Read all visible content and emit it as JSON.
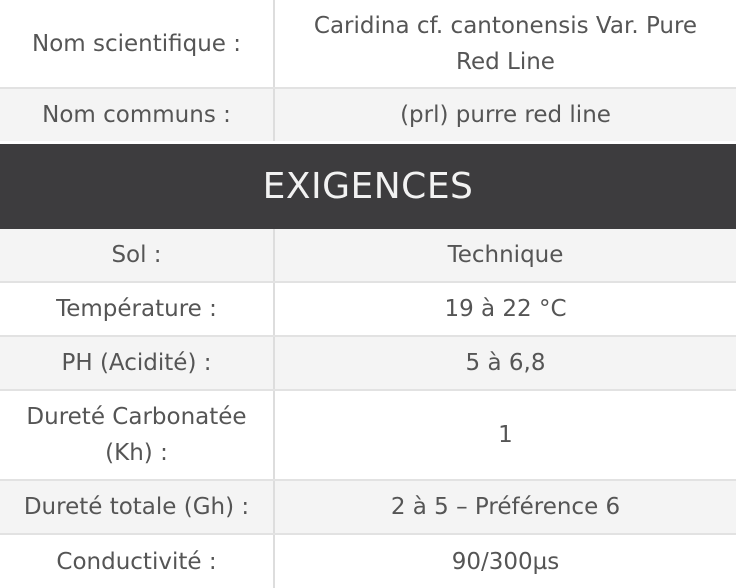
{
  "identity_rows": [
    {
      "label": "Nom scientifique :",
      "value": "Caridina cf. cantonensis Var. Pure Red Line"
    },
    {
      "label": "Nom communs :",
      "value": "(prl) purre red line"
    }
  ],
  "section_header": "EXIGENCES",
  "requirement_rows": [
    {
      "label": "Sol :",
      "value": "Technique"
    },
    {
      "label": "Température :",
      "value": "19 à 22 °C"
    },
    {
      "label": "PH (Acidité) :",
      "value": "5 à 6,8"
    },
    {
      "label": "Dureté Carbonatée (Kh) :",
      "value": "1"
    },
    {
      "label": "Dureté totale (Gh) :",
      "value": "2 à 5 – Préférence 6"
    },
    {
      "label": "Conductivité :",
      "value": "90/300µs"
    }
  ]
}
